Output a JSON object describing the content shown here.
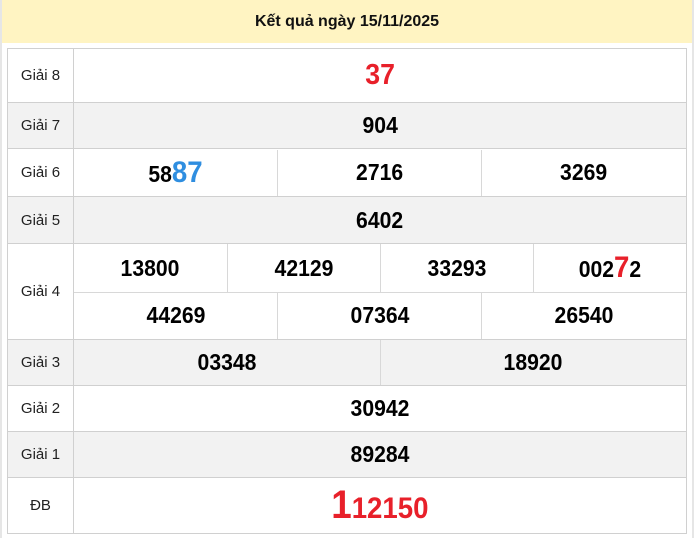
{
  "title": "Kết quả ngày 15/11/2025",
  "colors": {
    "header_bg": "#fff4c2",
    "highlight_red": "#e8202a",
    "highlight_blue": "#2f8ee0",
    "alt_row": "#f2f2f2"
  },
  "prizes": {
    "g8": {
      "label": "Giải 8",
      "value": "37"
    },
    "g7": {
      "label": "Giải 7",
      "value": "904"
    },
    "g6": {
      "label": "Giải 6",
      "values": [
        {
          "pre": "58",
          "hl": "87",
          "post": ""
        },
        "2716",
        "3269"
      ]
    },
    "g5": {
      "label": "Giải 5",
      "value": "6402"
    },
    "g4": {
      "label": "Giải 4",
      "row1": [
        "13800",
        "42129",
        "33293",
        {
          "pre": "002",
          "hl": "7",
          "post": "2"
        }
      ],
      "row2": [
        "44269",
        "07364",
        "26540"
      ]
    },
    "g3": {
      "label": "Giải 3",
      "values": [
        "03348",
        "18920"
      ]
    },
    "g2": {
      "label": "Giải 2",
      "value": "30942"
    },
    "g1": {
      "label": "Giải 1",
      "value": "89284"
    },
    "db": {
      "label": "ĐB",
      "hl": "1",
      "rest": "12150"
    }
  }
}
